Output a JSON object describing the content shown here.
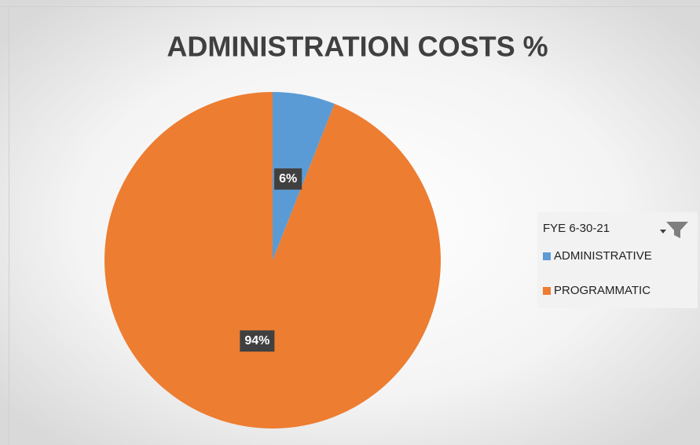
{
  "chart_data": {
    "type": "pie",
    "title": "ADMINISTRATION COSTS %",
    "legend_title": "FYE 6-30-21",
    "categories": [
      "ADMINISTRATIVE",
      "PROGRAMMATIC"
    ],
    "values": [
      6,
      94
    ],
    "value_labels": [
      "6%",
      "94%"
    ],
    "colors": [
      "#5b9bd5",
      "#ed7d31"
    ],
    "legend": "right"
  }
}
